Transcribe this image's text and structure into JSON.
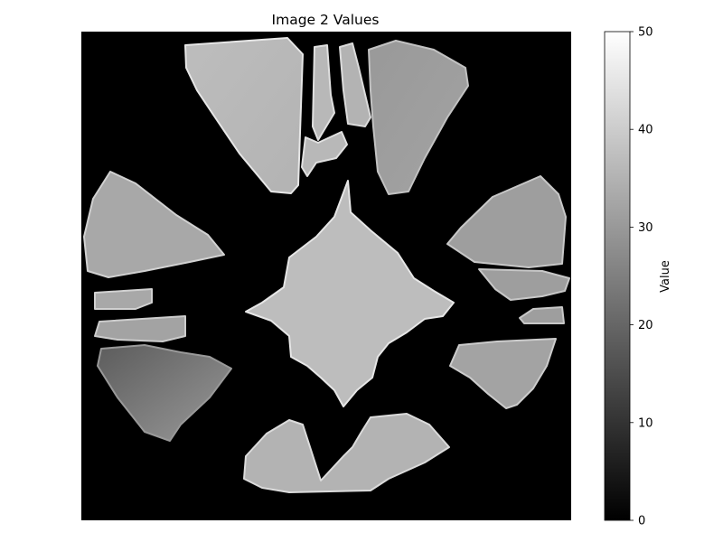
{
  "chart_data": {
    "type": "heatmap",
    "title": "Image 2 Values",
    "colormap": "gray",
    "vmin": 0,
    "vmax": 50,
    "background_value": 0,
    "colorbar": {
      "label": "Value",
      "ticks": [
        0,
        10,
        20,
        30,
        40,
        50
      ]
    },
    "regions": [
      {
        "id": "top-left-wedge",
        "value": 37
      },
      {
        "id": "top-center-strip-1",
        "value": 36
      },
      {
        "id": "top-center-strip-2",
        "value": 35
      },
      {
        "id": "top-center-strip-3",
        "value": 36
      },
      {
        "id": "top-right-wedge",
        "value": 30
      },
      {
        "id": "left-upper-wedge",
        "value": 33
      },
      {
        "id": "left-bar-1",
        "value": 33
      },
      {
        "id": "left-bar-2",
        "value": 32
      },
      {
        "id": "left-lower-wedge",
        "value": 22
      },
      {
        "id": "center-star",
        "value": 37
      },
      {
        "id": "right-upper-wedge",
        "value": 31
      },
      {
        "id": "right-bar-1",
        "value": 31
      },
      {
        "id": "right-bar-2",
        "value": 31
      },
      {
        "id": "right-lower-wedge",
        "value": 32
      },
      {
        "id": "bottom-wedge",
        "value": 35
      }
    ]
  }
}
